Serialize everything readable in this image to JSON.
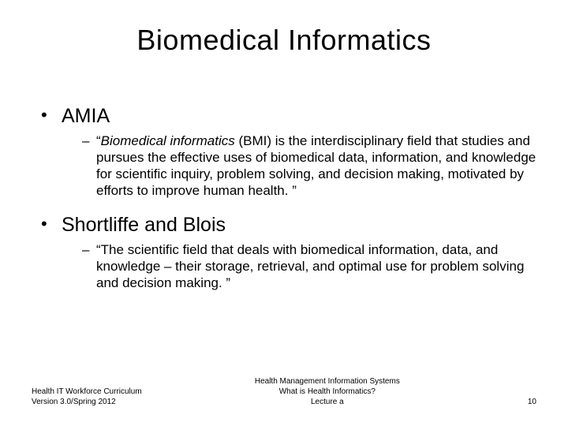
{
  "title": "Biomedical Informatics",
  "bullets": [
    {
      "label": "AMIA",
      "sub_italic": "Biomedical informatics",
      "sub_rest": " (BMI) is the interdisciplinary field that studies and pursues the effective uses of biomedical data, information, and knowledge for scientific inquiry, problem solving, and decision making, motivated by efforts to improve human health. ”"
    },
    {
      "label": "Shortliffe and Blois",
      "sub_italic": "",
      "sub_rest": "The scientific field that deals with biomedical information, data, and knowledge – their storage, retrieval, and optimal use for problem solving and decision making. ”"
    }
  ],
  "footer": {
    "left_line1": "Health IT Workforce Curriculum",
    "left_line2": "Version 3.0/Spring 2012",
    "center_line1": "Health Management Information Systems",
    "center_line2": "What is Health Informatics?",
    "center_line3": "Lecture a",
    "page": "10"
  }
}
